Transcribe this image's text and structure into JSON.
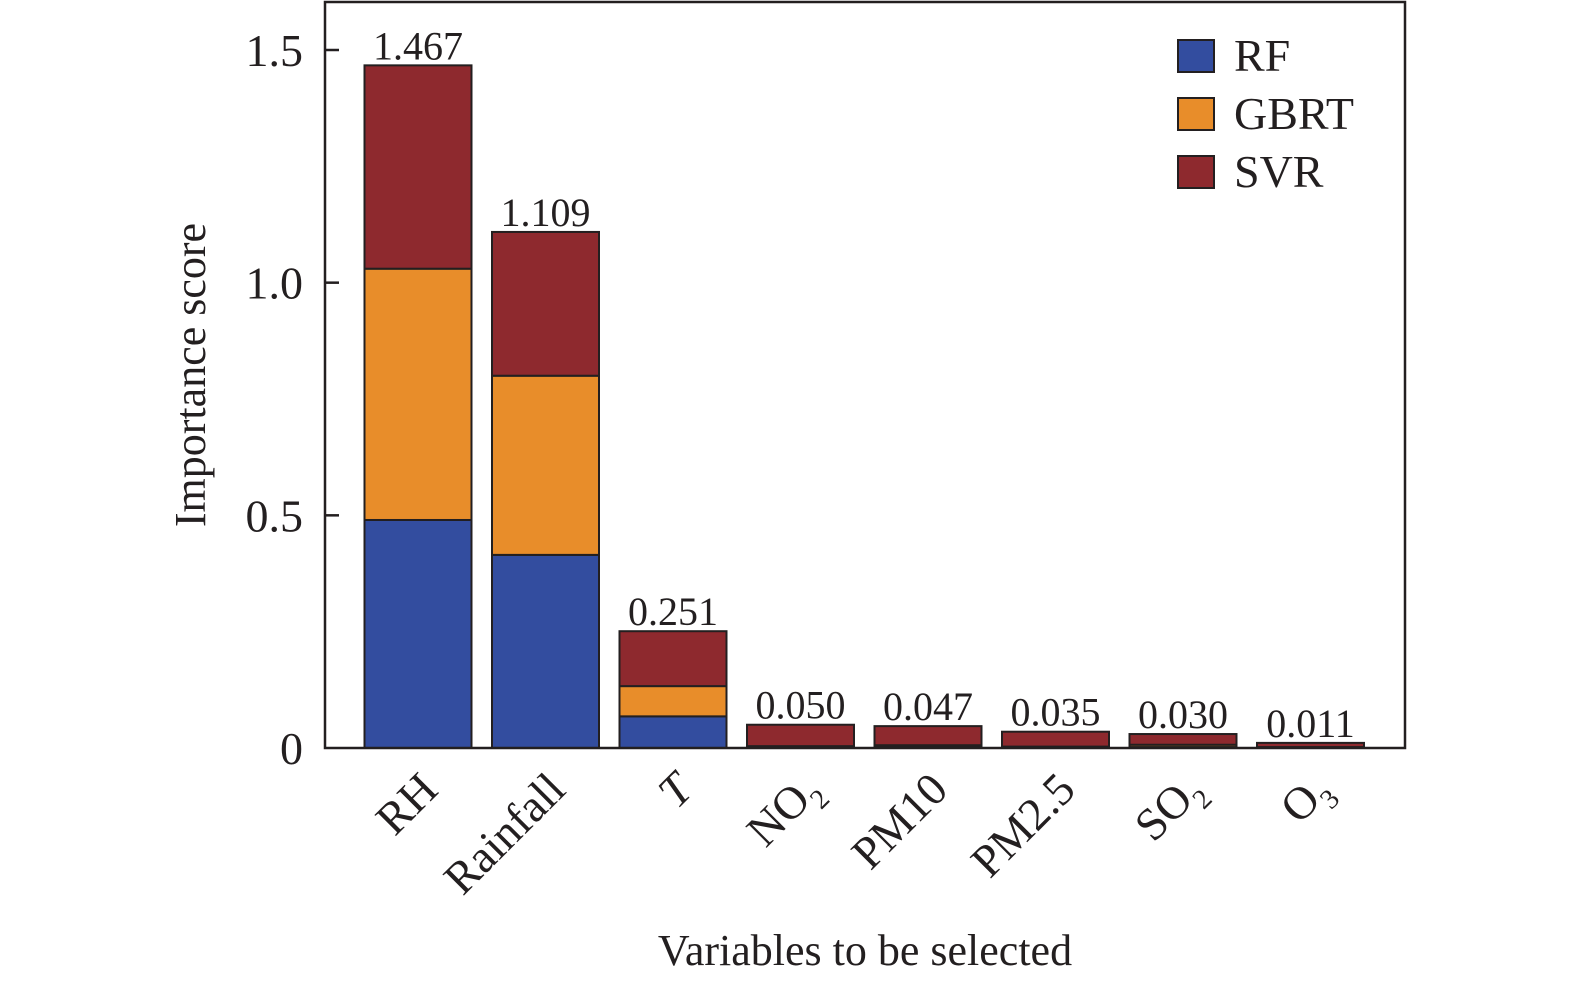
{
  "chart_data": {
    "type": "bar",
    "stacked": true,
    "xlabel": "Variables to be selected",
    "ylabel": "Importance score",
    "ylim": [
      0,
      1.6
    ],
    "yticks": [
      {
        "value": 0,
        "label": "0"
      },
      {
        "value": 0.5,
        "label": "0.5"
      },
      {
        "value": 1.0,
        "label": "1.0"
      },
      {
        "value": 1.5,
        "label": "1.5"
      }
    ],
    "categories": [
      {
        "label": "RH",
        "sub": "",
        "italic": false
      },
      {
        "label": "Rainfall",
        "sub": "",
        "italic": false
      },
      {
        "label": "T",
        "sub": "",
        "italic": true
      },
      {
        "label": "NO",
        "sub": "2",
        "italic": false
      },
      {
        "label": "PM10",
        "sub": "",
        "italic": false
      },
      {
        "label": "PM2.5",
        "sub": "",
        "italic": false
      },
      {
        "label": "SO",
        "sub": "2",
        "italic": false
      },
      {
        "label": "O",
        "sub": "3",
        "italic": false
      }
    ],
    "series": [
      {
        "name": "RF",
        "color": "#334d9f",
        "values": [
          0.49,
          0.415,
          0.068,
          0.002,
          0.003,
          0.001,
          0.002,
          0.001
        ]
      },
      {
        "name": "GBRT",
        "color": "#e88d2a",
        "values": [
          0.54,
          0.385,
          0.065,
          0.002,
          0.003,
          0.002,
          0.005,
          0.001
        ]
      },
      {
        "name": "SVR",
        "color": "#8e292e",
        "values": [
          0.437,
          0.309,
          0.118,
          0.046,
          0.041,
          0.032,
          0.023,
          0.009
        ]
      }
    ],
    "totals": [
      "1.467",
      "1.109",
      "0.251",
      "0.050",
      "0.047",
      "0.035",
      "0.030",
      "0.011"
    ],
    "legend": {
      "position": "top-right"
    },
    "grid": false
  }
}
